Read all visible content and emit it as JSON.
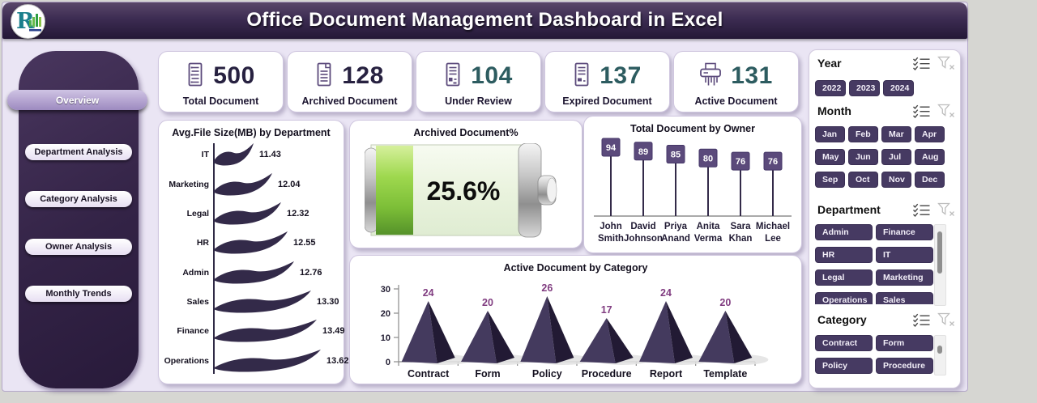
{
  "header": {
    "title": "Office Document Management Dashboard in Excel",
    "logo_letter": "R"
  },
  "sidebar": {
    "items": [
      {
        "label": "Overview",
        "active": true
      },
      {
        "label": "Department Analysis",
        "active": false
      },
      {
        "label": "Category Analysis",
        "active": false
      },
      {
        "label": "Owner Analysis",
        "active": false
      },
      {
        "label": "Monthly Trends",
        "active": false
      }
    ]
  },
  "kpis": [
    {
      "label": "Total Document",
      "value": "500",
      "icon": "document-list-icon",
      "value_color": "#272140"
    },
    {
      "label": "Archived Document",
      "value": "128",
      "icon": "archived-document-icon",
      "value_color": "#272140"
    },
    {
      "label": "Under Review",
      "value": "104",
      "icon": "review-document-icon",
      "value_color": "#2d5c60"
    },
    {
      "label": "Expired Document",
      "value": "137",
      "icon": "expired-document-icon",
      "value_color": "#2d5c60"
    },
    {
      "label": "Active Document",
      "value": "131",
      "icon": "shredder-icon",
      "value_color": "#2d5c60"
    }
  ],
  "chart_data": [
    {
      "type": "bar",
      "style": "wave-ribbon",
      "orientation": "horizontal",
      "title": "Avg.File Size(MB) by Department",
      "categories": [
        "IT",
        "Marketing",
        "Legal",
        "HR",
        "Admin",
        "Sales",
        "Finance",
        "Operations"
      ],
      "values": [
        11.43,
        12.04,
        12.32,
        12.55,
        12.76,
        13.3,
        13.49,
        13.62
      ],
      "value_format": "0.00",
      "bar_color": "#332a49"
    },
    {
      "type": "gauge",
      "style": "battery",
      "title": "Archived Document%",
      "value": 25.6,
      "max": 100,
      "label": "25.6%",
      "fill_color": "#8dc63f"
    },
    {
      "type": "bar",
      "style": "lollipop",
      "title": "Total Document by Owner",
      "categories": [
        "John Smith",
        "David Johnson",
        "Priya Anand",
        "Anita Verma",
        "Sara Khan",
        "Michael Lee"
      ],
      "values": [
        94,
        89,
        85,
        80,
        76,
        76
      ],
      "marker_color": "#5b4a7b"
    },
    {
      "type": "bar",
      "style": "pyramid",
      "title": "Active Document by Category",
      "categories": [
        "Contract",
        "Form",
        "Policy",
        "Procedure",
        "Report",
        "Template"
      ],
      "values": [
        24,
        20,
        26,
        17,
        24,
        20
      ],
      "ylim": [
        0,
        30
      ],
      "yticks": [
        0,
        10,
        20,
        30
      ],
      "label_color": "#803c80",
      "bar_color": "#443a5e"
    }
  ],
  "slicers": [
    {
      "title": "Year",
      "columns": 3,
      "items": [
        "2022",
        "2023",
        "2024"
      ],
      "scrollbar": false
    },
    {
      "title": "Month",
      "columns": 4,
      "items": [
        "Jan",
        "Feb",
        "Mar",
        "Apr",
        "May",
        "Jun",
        "Jul",
        "Aug",
        "Sep",
        "Oct",
        "Nov",
        "Dec"
      ],
      "scrollbar": false
    },
    {
      "title": "Department",
      "columns": 2,
      "items": [
        "Admin",
        "Finance",
        "HR",
        "IT",
        "Legal",
        "Marketing",
        "Operations",
        "Sales"
      ],
      "scrollbar": true
    },
    {
      "title": "Category",
      "columns": 2,
      "items": [
        "Contract",
        "Form",
        "Policy",
        "Procedure"
      ],
      "scrollbar": true
    }
  ],
  "colors": {
    "header_purple": "#3c2c52",
    "dashboard_bg": "#eae5f4",
    "slicer_button_purple": "#463a62",
    "shape_purple": "#332a49",
    "marker_purple": "#5b4a7b",
    "kpi_navy": "#272140",
    "kpi_teal": "#2d5c60",
    "battery_green": "#8dc63f",
    "pyramid_label_purple": "#803c80"
  }
}
